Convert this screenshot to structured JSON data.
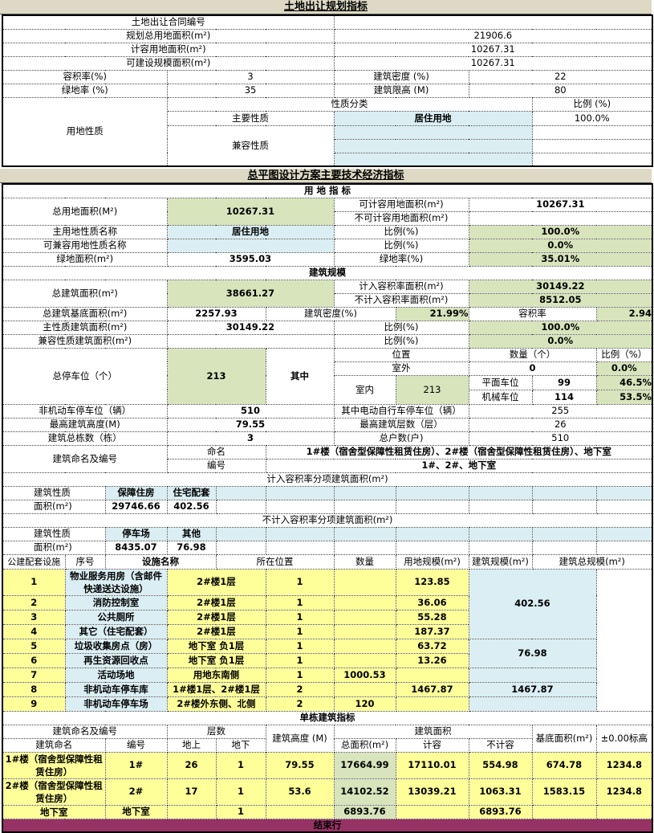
{
  "land": {
    "title": "土地出让规划指标",
    "contract_label": "土地出让合同编号",
    "contract_value": "",
    "total_area_label": "规划总用地面积(m²)",
    "total_area": "21906.6",
    "fa_land_label": "计容用地面积(m²)",
    "fa_land": "10267.31",
    "buildable_label": "可建设规模面积(m²)",
    "buildable": "10267.31",
    "far_label": "容积率(%)",
    "far": "3",
    "density_label": "建筑密度 (%)",
    "density": "22",
    "green_label": "绿地率 (%)",
    "green": "35",
    "height_label": "建筑限高 (M)",
    "height": "80",
    "use_label": "用地性质",
    "class_label": "性质分类",
    "ratio_label": "比例 (%)",
    "main_label": "主要性质",
    "main_value": "居住用地",
    "main_ratio": "100.0%",
    "compat_label": "兼容性质"
  },
  "tech": {
    "title": "总平图设计方案主要技术经济指标",
    "land_head": "用 地 指 标",
    "total_land_label": "总用地面积(M²)",
    "total_land": "10267.31",
    "fa_land_label": "可计容用地面积(m²)",
    "fa_land": "10267.31",
    "nonfa_land_label": "不可计容用地面积(m²)",
    "nonfa_land": "",
    "main_use_label": "主用地性质名称",
    "main_use": "居住用地",
    "ratio_label": "比例(%)",
    "main_use_ratio": "100.0%",
    "compat_use_label": "可兼容用地性质名称",
    "compat_use": "",
    "compat_use_ratio": "0.0%",
    "green_area_label": "绿地面积(m²)",
    "green_area": "3595.03",
    "green_rate_label": "绿地率(%)",
    "green_rate": "35.01%",
    "build_head": "建筑规模",
    "total_build_label": "总建筑面积(m²)",
    "total_build": "38661.27",
    "far_area_label": "计入容积率面积(m²)",
    "far_area": "30149.22",
    "nonfar_area_label": "不计入容积率面积(m²)",
    "nonfar_area": "8512.05",
    "base_label": "总建筑基底面积(m²)",
    "base": "2257.93",
    "density_label": "建筑密度(%)",
    "density": "21.99%",
    "far_label": "容积率",
    "far": "2.94",
    "main_build_label": "主性质建筑面积(m²)",
    "main_build": "30149.22",
    "main_build_ratio": "100.0%",
    "compat_build_label": "兼容性质建筑面积(m²)",
    "compat_build": "",
    "compat_build_ratio": "0.0%",
    "parking_label": "总停车位（个）",
    "parking": "213",
    "among": "其中",
    "pos_label": "位置",
    "qty_label": "数量（个）",
    "pct_label": "比例（%）",
    "outdoor_label": "室外",
    "outdoor": "0",
    "outdoor_pct": "0.0%",
    "indoor_label": "室内",
    "indoor": "213",
    "flat_label": "平面车位",
    "flat": "99",
    "flat_pct": "46.5%",
    "mech_label": "机械车位",
    "mech": "114",
    "mech_pct": "53.5%",
    "bike_label": "非机动车停车位（辆）",
    "bike": "510",
    "ebike_label": "其中电动自行车停车位（辆）",
    "ebike": "255",
    "max_h_label": "最高建筑高度(M)",
    "max_h": "79.55",
    "max_f_label": "最高建筑层数（层）",
    "max_f": "26",
    "count_label": "建筑总栋数（栋）",
    "count": "3",
    "households_label": "总户数(户)",
    "households": "510",
    "naming_label": "建筑命名及编号",
    "name_label": "命名",
    "names": "1#楼（宿舍型保障性租赁住房）、2#楼（宿舍型保障性租赁住房）、地下室",
    "code_label": "编号",
    "codes": "1#、2#、地下室",
    "far_split_head": "计入容积率分项建筑面积(m²)",
    "nature_label": "建筑性质",
    "area_label": "面积(m²)",
    "far_split": [
      {
        "name": "保障住房",
        "area": "29746.66"
      },
      {
        "name": "住宅配套",
        "area": "402.56"
      }
    ],
    "nonfar_split_head": "不计入容积率分项建筑面积(m²)",
    "nonfar_split": [
      {
        "name": "停车场",
        "area": "8435.07"
      },
      {
        "name": "其他",
        "area": "76.98"
      }
    ]
  },
  "facilities": {
    "label": "公建配套设施",
    "headers": [
      "序号",
      "设施名称",
      "所在位置",
      "数量",
      "用地规模(m²)",
      "建筑规模(m²)",
      "建筑总规模(m²)"
    ],
    "rows": [
      {
        "no": "1",
        "name": "物业服务用房（含邮件快递送达设施）",
        "loc": "2#楼1层",
        "qty": "1",
        "land": "",
        "build": "123.85"
      },
      {
        "no": "2",
        "name": "消防控制室",
        "loc": "2#楼1层",
        "qty": "1",
        "land": "",
        "build": "36.06"
      },
      {
        "no": "3",
        "name": "公共厕所",
        "loc": "2#楼1层",
        "qty": "1",
        "land": "",
        "build": "55.28"
      },
      {
        "no": "4",
        "name": "其它（住宅配套）",
        "loc": "2#楼1层",
        "qty": "1",
        "land": "",
        "build": "187.37"
      },
      {
        "no": "5",
        "name": "垃圾收集房点（房）",
        "loc": "地下室 负1层",
        "qty": "1",
        "land": "",
        "build": "63.72"
      },
      {
        "no": "6",
        "name": "再生资源回收点",
        "loc": "地下室 负1层",
        "qty": "1",
        "land": "",
        "build": "13.26"
      },
      {
        "no": "7",
        "name": "活动场地",
        "loc": "用地东南侧",
        "qty": "1",
        "land": "1000.53",
        "build": ""
      },
      {
        "no": "8",
        "name": "非机动车停车库",
        "loc": "1#楼1层、2#楼1层",
        "qty": "2",
        "land": "",
        "build": "1467.87"
      },
      {
        "no": "9",
        "name": "非机动车停车场",
        "loc": "2#楼外东侧、北侧",
        "qty": "2",
        "land": "120",
        "build": ""
      }
    ],
    "totals": [
      "402.56",
      "76.98",
      "",
      "1467.87",
      ""
    ]
  },
  "single": {
    "title": "单栋建筑指标",
    "h_naming": "建筑命名及编号",
    "h_floors": "层数",
    "h_height": "建筑高度 (M)",
    "h_area": "建筑面积",
    "h_base": "基底面积(m²)",
    "h_elev": "±0.00标高",
    "h_name": "建筑命名",
    "h_code": "编号",
    "h_above": "地上",
    "h_below": "地下",
    "h_total": "总面积(m²)",
    "h_far": "计容",
    "h_nonfar": "不计容",
    "rows": [
      {
        "name": "1#楼（宿舍型保障性租赁住房）",
        "code": "1#",
        "above": "26",
        "below": "1",
        "height": "79.55",
        "total": "17664.99",
        "far": "17110.01",
        "nonfar": "554.98",
        "base": "674.78",
        "elev": "1234.8"
      },
      {
        "name": "2#楼（宿舍型保障性租赁住房）",
        "code": "2#",
        "above": "17",
        "below": "1",
        "height": "53.6",
        "total": "14102.52",
        "far": "13039.21",
        "nonfar": "1063.31",
        "base": "1583.15",
        "elev": "1234.8"
      },
      {
        "name": "地下室",
        "code": "地下室",
        "above": "",
        "below": "1",
        "height": "",
        "total": "6893.76",
        "far": "",
        "nonfar": "6893.76",
        "base": "",
        "elev": ""
      }
    ],
    "end_label": "结束行"
  }
}
